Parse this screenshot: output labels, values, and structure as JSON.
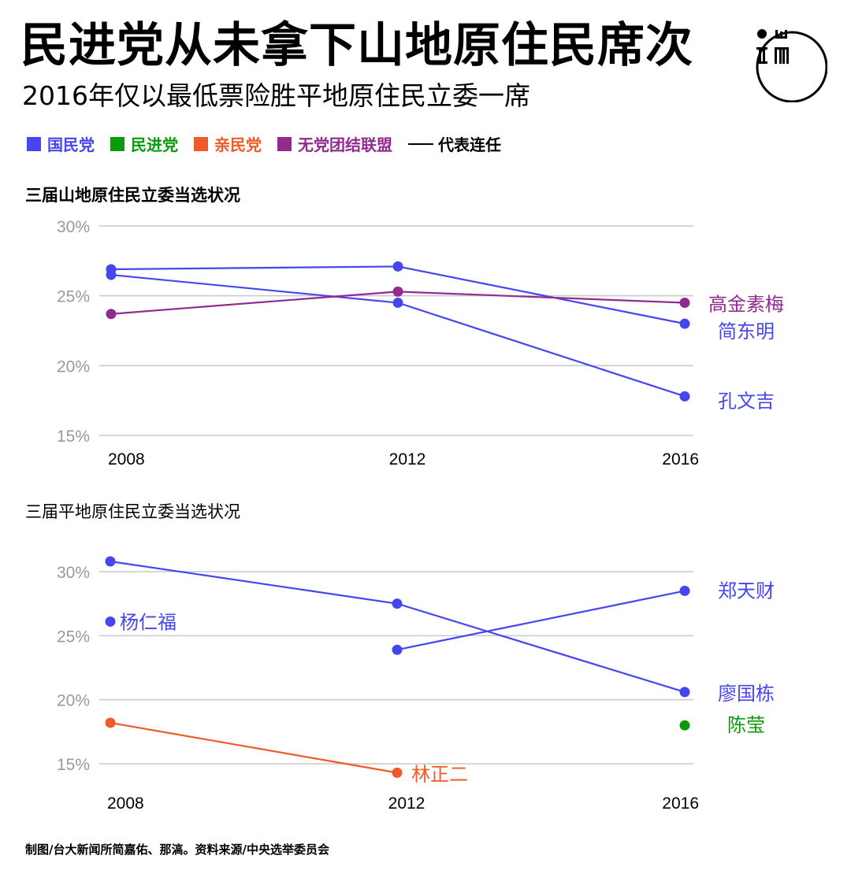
{
  "header": {
    "title": "民进党从未拿下山地原住民席次",
    "subtitle": "2016年仅以最低票险胜平地原住民立委一席",
    "logo_icon": "initium-logo-icon"
  },
  "colors": {
    "kmt": "#4646F0",
    "dpp": "#0A9A0A",
    "pfp": "#F05A28",
    "npsu": "#922B8F",
    "grid": "#c8c8c8",
    "tick": "#999999"
  },
  "legend": {
    "items": [
      {
        "label": "国民党",
        "party": "kmt"
      },
      {
        "label": "民进党",
        "party": "dpp"
      },
      {
        "label": "亲民党",
        "party": "pfp"
      },
      {
        "label": "无党团结联盟",
        "party": "npsu"
      }
    ],
    "line_label": "代表连任"
  },
  "chart_data": [
    {
      "type": "line",
      "title": "三届山地原住民立委当选状况",
      "xlabel": "",
      "ylabel": "",
      "x": [
        2008,
        2012,
        2016
      ],
      "x_tick_labels": [
        "2008",
        "2012",
        "2016"
      ],
      "ylim": [
        15,
        30
      ],
      "y_ticks": [
        30,
        25,
        20,
        15
      ],
      "y_tick_labels": [
        "30%",
        "25%",
        "20%",
        "15%"
      ],
      "grid": true,
      "series": [
        {
          "name": "简东明",
          "party": "kmt",
          "values": [
            26.9,
            27.1,
            23.0
          ],
          "label": "简东明"
        },
        {
          "name": "孔文吉",
          "party": "kmt",
          "values": [
            26.5,
            24.5,
            17.8
          ],
          "label": "孔文吉"
        },
        {
          "name": "高金素梅",
          "party": "npsu",
          "values": [
            23.7,
            25.3,
            24.5
          ],
          "label": "高金素梅"
        }
      ]
    },
    {
      "type": "line",
      "title": "三届平地原住民立委当选状况",
      "xlabel": "",
      "ylabel": "",
      "x": [
        2008,
        2012,
        2016
      ],
      "x_tick_labels": [
        "2008",
        "2012",
        "2016"
      ],
      "ylim": [
        15,
        30
      ],
      "y_ticks": [
        30,
        25,
        20,
        15
      ],
      "y_tick_labels": [
        "30%",
        "25%",
        "20%",
        "15%"
      ],
      "grid": true,
      "series": [
        {
          "name": "廖国栋",
          "party": "kmt",
          "values": [
            30.8,
            27.5,
            20.6
          ],
          "label": "廖国栋"
        },
        {
          "name": "郑天财",
          "party": "kmt",
          "values": [
            null,
            23.9,
            28.5
          ],
          "label": "郑天财"
        },
        {
          "name": "杨仁福",
          "party": "kmt",
          "values": [
            26.1,
            null,
            null
          ],
          "label": "杨仁福"
        },
        {
          "name": "林正二",
          "party": "pfp",
          "values": [
            18.2,
            14.3,
            null
          ],
          "label": "林正二"
        },
        {
          "name": "陈莹",
          "party": "dpp",
          "values": [
            null,
            null,
            18.0
          ],
          "label": "陈莹"
        }
      ]
    }
  ],
  "footer": {
    "credit": "制图/台大新闻所简嘉佑、那滈。资料来源/中央选举委员会"
  }
}
